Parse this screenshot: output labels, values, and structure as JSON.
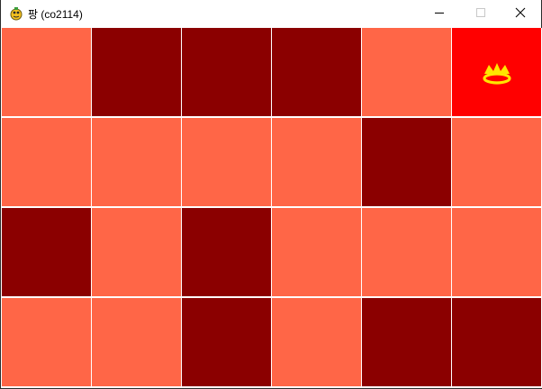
{
  "window": {
    "title": "팡 (co2114)",
    "icon": "pygame-snake-icon",
    "controls": [
      "minimize-icon",
      "maximize-icon",
      "close-icon"
    ]
  },
  "colors": {
    "light": "#ff6647",
    "dark": "#8b0000",
    "target": "#ff0000",
    "crown": "#ffe600"
  },
  "board": {
    "rows": 4,
    "cols": 6,
    "cells": [
      [
        "light",
        "dark",
        "dark",
        "dark",
        "light",
        "target"
      ],
      [
        "light",
        "light",
        "light",
        "light",
        "dark",
        "light"
      ],
      [
        "dark",
        "light",
        "dark",
        "light",
        "light",
        "light"
      ],
      [
        "light",
        "light",
        "dark",
        "light",
        "dark",
        "dark"
      ]
    ],
    "crown_cell": [
      0,
      5
    ],
    "crown_icon": "crown-icon"
  }
}
